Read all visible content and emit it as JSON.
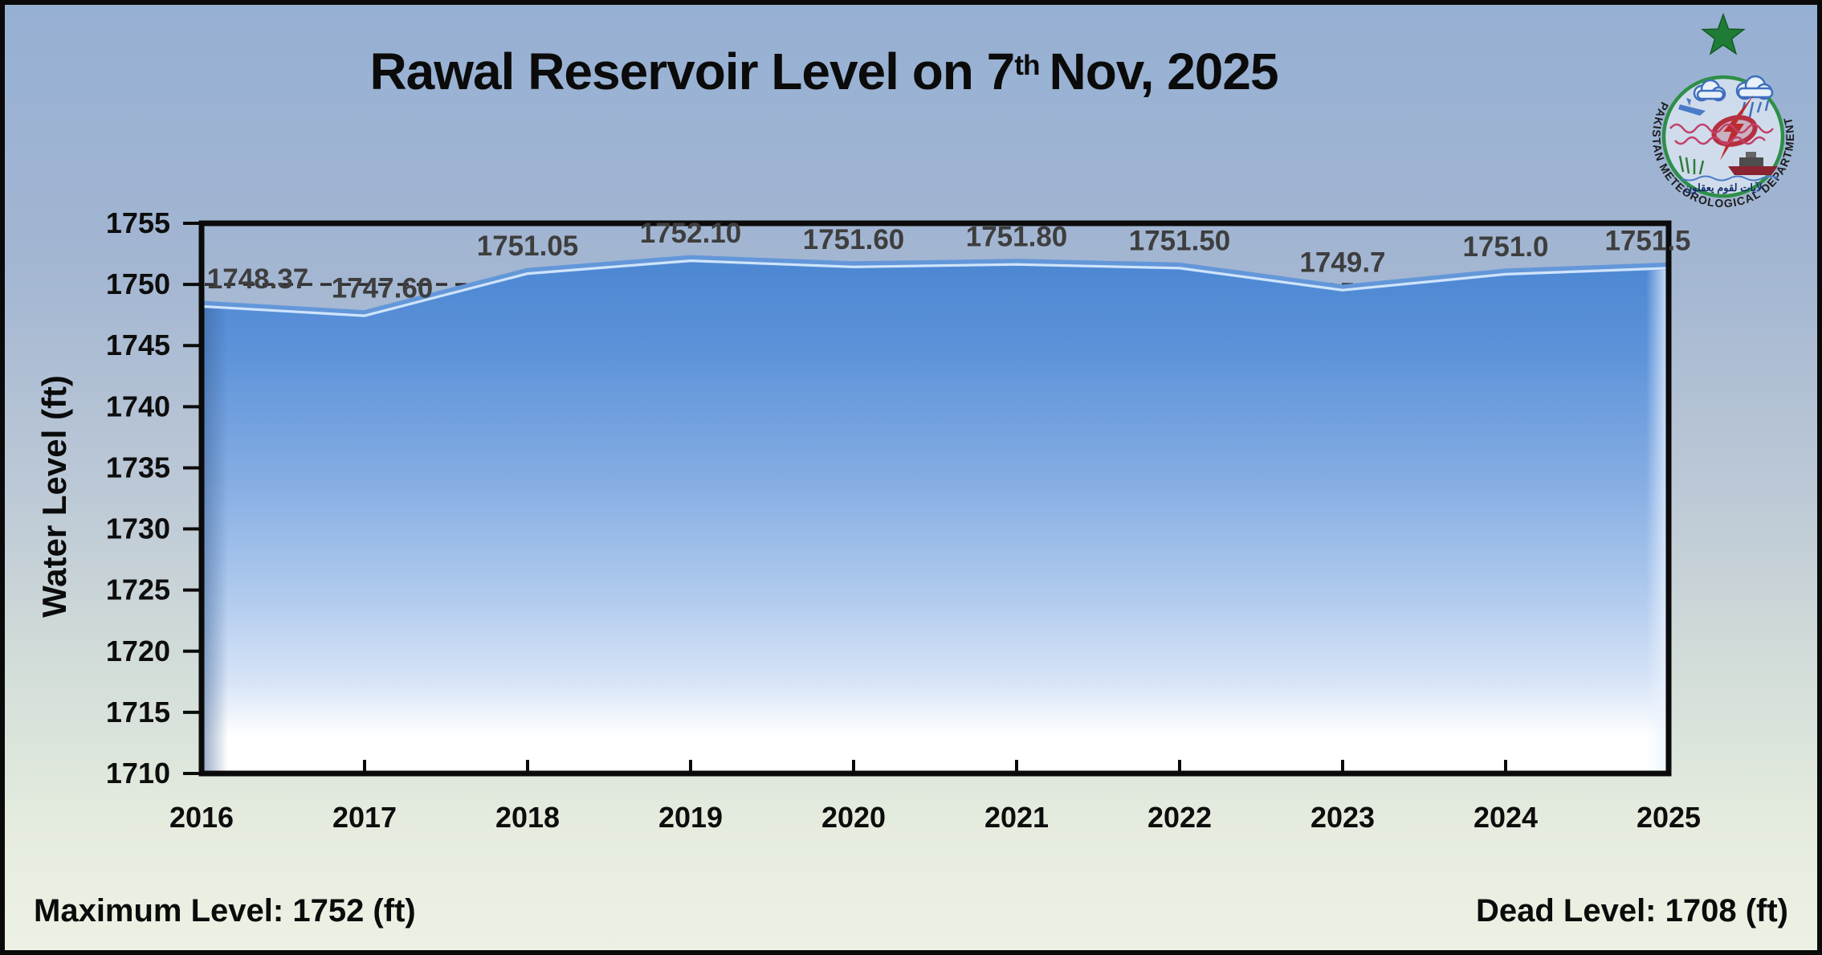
{
  "header": {
    "title_prefix": "Rawal Reservoir Level on 7",
    "title_superscript": "th",
    "title_suffix": "Nov, 2025"
  },
  "logo": {
    "ring_text": "PAKISTAN METEOROLOGICAL DEPARTMENT",
    "arabic_text": "لآيات لقوم يعقلون",
    "colors": {
      "star": "#1e7c36",
      "ring": "#2e8f47",
      "bolt": "#bf2a2a",
      "cloud_outline": "#3f6fbd",
      "wave": "#c2406a"
    }
  },
  "footer": {
    "max_level_label": "Maximum Level: 1752 (ft)",
    "dead_level_label": "Dead Level: 1708 (ft)"
  },
  "chart_data": {
    "type": "area",
    "title": "Rawal Reservoir Level on 7th Nov, 2025",
    "x": [
      2016,
      2017,
      2018,
      2019,
      2020,
      2021,
      2022,
      2023,
      2024,
      2025
    ],
    "values": [
      1748.37,
      1747.6,
      1751.05,
      1752.1,
      1751.6,
      1751.8,
      1751.5,
      1749.7,
      1751.0,
      1751.5
    ],
    "point_labels": [
      "1748.37",
      "1747.60",
      "1751.05",
      "1752.10",
      "1751.60",
      "1751.80",
      "1751.50",
      "1749.7",
      "1751.0",
      "1751.5"
    ],
    "xlabel": "",
    "ylabel": "Water Level (ft)",
    "ylim": [
      1710,
      1755
    ],
    "ytick_step": 5,
    "reference_line_value": 1750,
    "grid": false,
    "legend": false,
    "max_level_ft": 1752,
    "dead_level_ft": 1708,
    "colors": {
      "axis": "#0b0b0b",
      "area_top": "#4b86d2",
      "area_bottom": "#ffffff",
      "area_edge": "#6397d9",
      "area_edge_highlight": "#cfe4fc",
      "point_label": "#3e3e3e",
      "reference_line": "#2f2f2f",
      "bg_top": "#96b0d3",
      "bg_bottom": "#ebf1e3"
    }
  }
}
